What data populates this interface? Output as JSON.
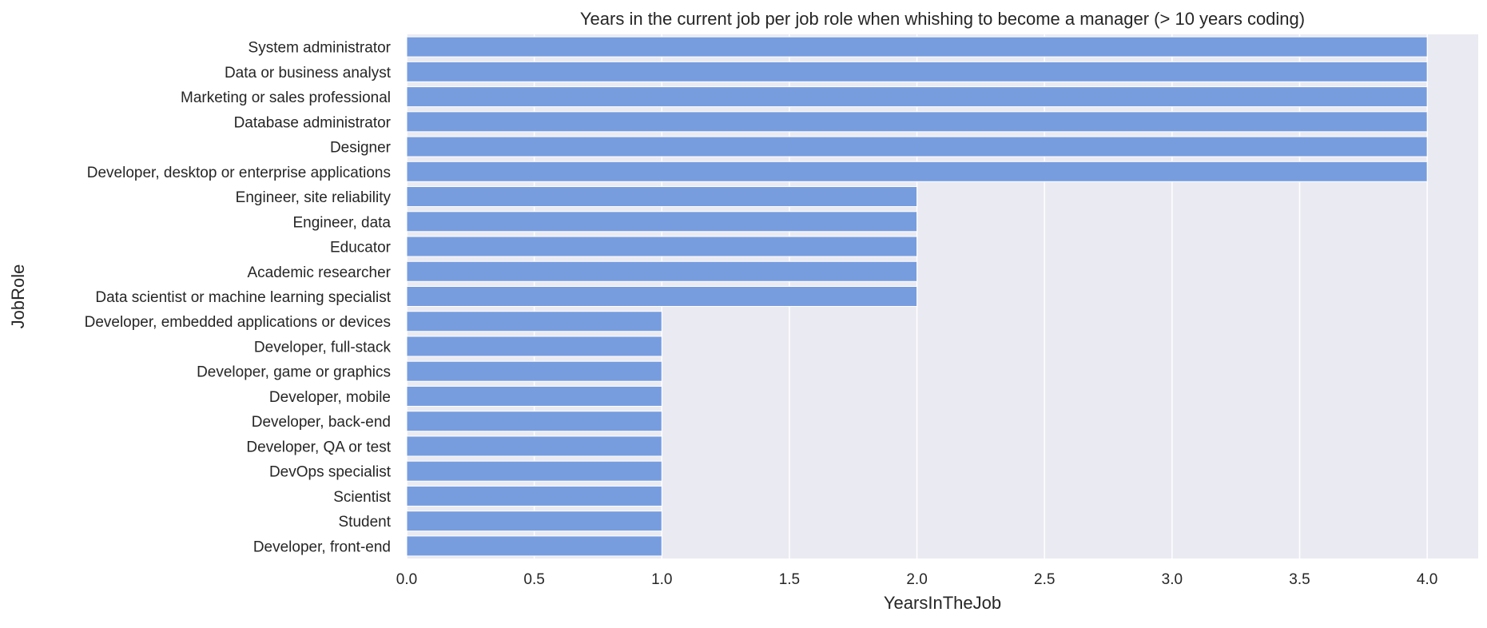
{
  "chart_data": {
    "type": "bar",
    "orientation": "horizontal",
    "title": "Years in the current job per job role when whishing to become a manager (> 10 years coding)",
    "xlabel": "YearsInTheJob",
    "ylabel": "JobRole",
    "xlim": [
      0,
      4.2
    ],
    "xticks": [
      "0.0",
      "0.5",
      "1.0",
      "1.5",
      "2.0",
      "2.5",
      "3.0",
      "3.5",
      "4.0"
    ],
    "grid": true,
    "bar_color": "#779ddf",
    "background_color": "#eaeaf2",
    "grid_color": "#ffffff",
    "categories": [
      "System administrator",
      "Data or business analyst",
      "Marketing or sales professional",
      "Database administrator",
      "Designer",
      "Developer, desktop or enterprise applications",
      "Engineer, site reliability",
      "Engineer, data",
      "Educator",
      "Academic researcher",
      "Data scientist or machine learning specialist",
      "Developer, embedded applications or devices",
      "Developer, full-stack",
      "Developer, game or graphics",
      "Developer, mobile",
      "Developer, back-end",
      "Developer, QA or test",
      "DevOps specialist",
      "Scientist",
      "Student",
      "Developer, front-end"
    ],
    "values": [
      4,
      4,
      4,
      4,
      4,
      4,
      2,
      2,
      2,
      2,
      2,
      1,
      1,
      1,
      1,
      1,
      1,
      1,
      1,
      1,
      1
    ]
  }
}
